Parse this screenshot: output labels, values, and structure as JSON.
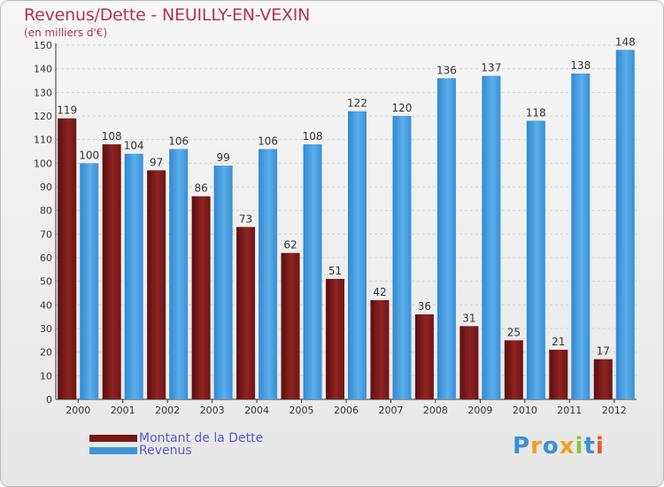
{
  "header": {
    "title": "Revenus/Dette - NEUILLY-EN-VEXIN",
    "subtitle": "(en milliers d'€)"
  },
  "legend": {
    "items": [
      {
        "label": "Montant de la Dette",
        "color": "#7a1616"
      },
      {
        "label": "Revenus",
        "color": "#3f95d9"
      }
    ]
  },
  "logo": {
    "text": "Proxiti",
    "letter_colors": [
      "#3a8fd8",
      "#f0a020",
      "#3a8fd8",
      "#f0a020",
      "#8cc63f",
      "#3a8fd8",
      "#e8552a"
    ]
  },
  "chart_data": {
    "type": "bar",
    "title": "Revenus/Dette - NEUILLY-EN-VEXIN",
    "subtitle": "(en milliers d'€)",
    "xlabel": "",
    "ylabel": "",
    "ylim": [
      0,
      150
    ],
    "yticks": [
      0,
      10,
      20,
      30,
      40,
      50,
      60,
      70,
      80,
      90,
      100,
      110,
      120,
      130,
      140,
      150
    ],
    "grid": true,
    "categories": [
      "2000",
      "2001",
      "2002",
      "2003",
      "2004",
      "2005",
      "2006",
      "2007",
      "2008",
      "2009",
      "2010",
      "2011",
      "2012"
    ],
    "series": [
      {
        "name": "Montant de la Dette",
        "color": "#7a1616",
        "values": [
          119,
          108,
          97,
          86,
          73,
          62,
          51,
          42,
          36,
          31,
          25,
          21,
          17
        ]
      },
      {
        "name": "Revenus",
        "color": "#3f95d9",
        "values": [
          100,
          104,
          106,
          99,
          106,
          108,
          122,
          120,
          136,
          137,
          118,
          138,
          148
        ]
      }
    ],
    "legend_position": "bottom-left"
  }
}
